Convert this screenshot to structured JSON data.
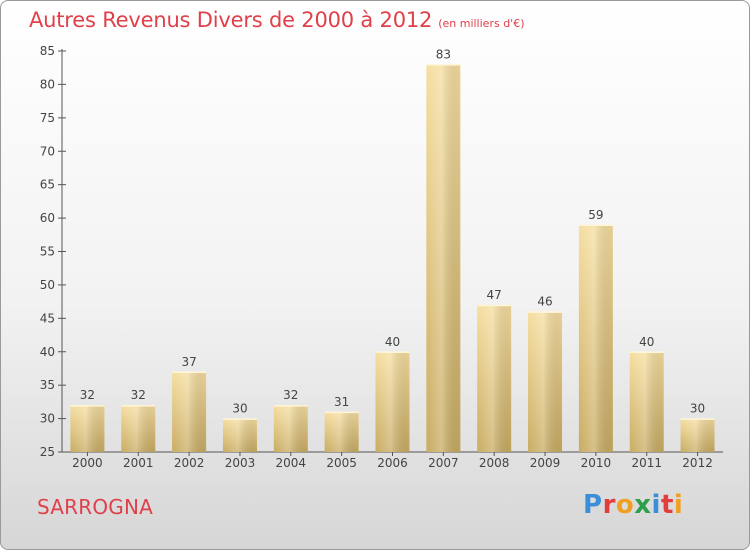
{
  "header": {
    "title": "Autres Revenus Divers de 2000 à 2012",
    "subtitle": "(en milliers d'€)"
  },
  "footer": {
    "commune": "SARROGNA",
    "logo_letters": [
      "P",
      "r",
      "o",
      "x",
      "i",
      "t",
      "i"
    ],
    "logo_colors": [
      "#3a8fd8",
      "#e23c3c",
      "#f0a020",
      "#2aa04a",
      "#3a8fd8",
      "#e23c3c",
      "#f0a020"
    ]
  },
  "chart_data": {
    "type": "bar",
    "title": "Autres Revenus Divers de 2000 à 2012",
    "subtitle": "(en milliers d'€)",
    "categories": [
      "2000",
      "2001",
      "2002",
      "2003",
      "2004",
      "2005",
      "2006",
      "2007",
      "2008",
      "2009",
      "2010",
      "2011",
      "2012"
    ],
    "values": [
      32,
      32,
      37,
      30,
      32,
      31,
      40,
      83,
      47,
      46,
      59,
      40,
      30
    ],
    "value_labels": [
      "32",
      "32",
      "37",
      "30",
      "32",
      "31",
      "40",
      "83",
      "47",
      "46",
      "59",
      "40",
      "30"
    ],
    "ylim": [
      25,
      85
    ],
    "yticks": [
      25,
      30,
      35,
      40,
      45,
      50,
      55,
      60,
      65,
      70,
      75,
      80,
      85
    ],
    "ytick_labels": [
      "25",
      "30",
      "35",
      "40",
      "45",
      "50",
      "55",
      "60",
      "65",
      "70",
      "75",
      "80",
      "85"
    ],
    "xlabel": "",
    "ylabel": "",
    "grid": false,
    "legend": "none",
    "bar_color_light": "#f6dea0",
    "bar_color_dark": "#c9ac62"
  }
}
